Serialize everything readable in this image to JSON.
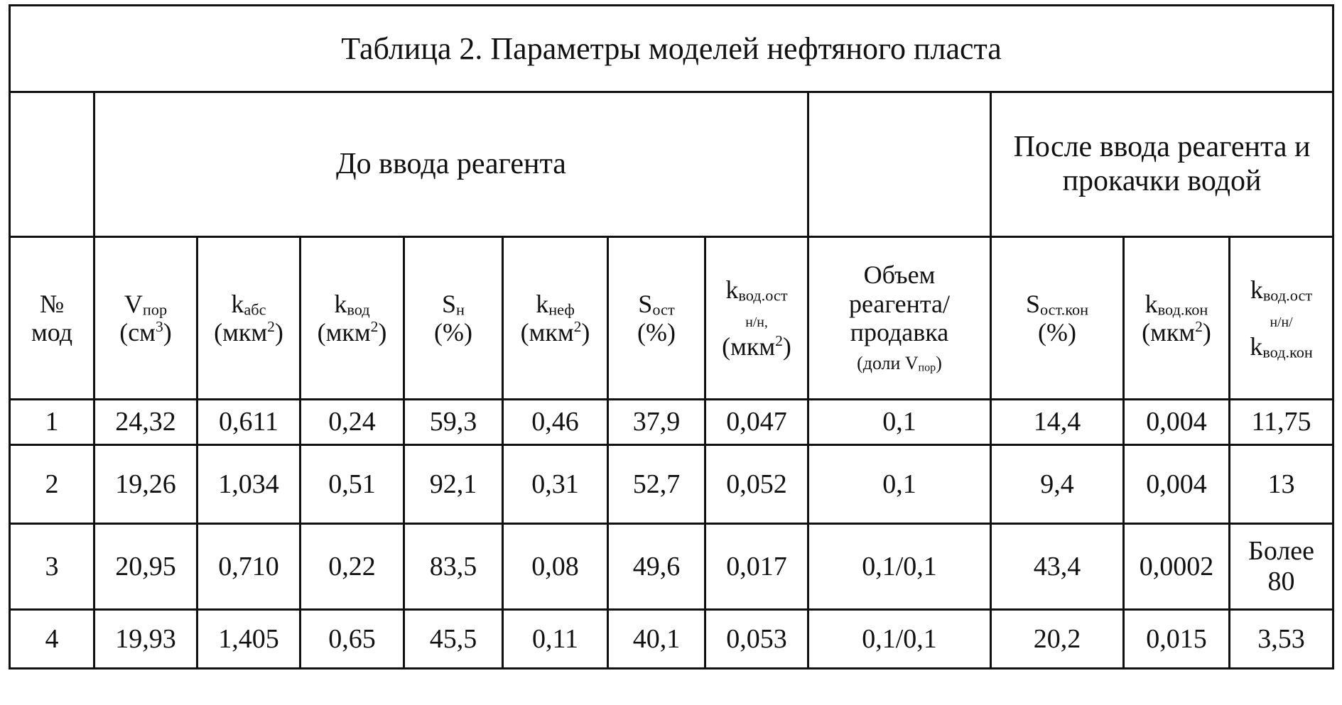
{
  "title": "Таблица 2. Параметры моделей нефтяного пласта",
  "groups": {
    "before": "До ввода реагента",
    "after": "После ввода реагента и прокачки водой"
  },
  "headers": [
    {
      "main": "№",
      "line2": "мод"
    },
    {
      "main": "V",
      "sub": "пор",
      "line2": "(см",
      "sup": "3",
      "close": ")"
    },
    {
      "main": "k",
      "sub": "абс",
      "line2": "(мкм",
      "sup": "2",
      "close": ")"
    },
    {
      "main": "k",
      "sub": "вод",
      "line2": "(мкм",
      "sup": "2",
      "close": ")"
    },
    {
      "main": "S",
      "sub": "н",
      "line2": "(%)"
    },
    {
      "main": "k",
      "sub": "неф",
      "line2": "(мкм",
      "sup": "2",
      "close": ")"
    },
    {
      "main": "S",
      "sub": "ост",
      "line2": "(%)"
    },
    {
      "main": "k",
      "sub": "вод.ост",
      "mid": "н/н,",
      "line2": "(мкм",
      "sup": "2",
      "close": ")"
    },
    {
      "l1": "Объем",
      "l2": "реагента/",
      "l3": "продавка",
      "l4": "(доли V",
      "sub": "пор",
      "close": ")"
    },
    {
      "main": "S",
      "sub": "ост.кон",
      "line2": "(%)"
    },
    {
      "main": "k",
      "sub": "вод.кон",
      "line2": "(мкм",
      "sup": "2",
      "close": ")"
    },
    {
      "main": "k",
      "sub": "вод.ост",
      "mid": "н/н/",
      "main2": "k",
      "sub2": "вод.кон"
    }
  ],
  "rows": [
    [
      "1",
      "24,32",
      "0,611",
      "0,24",
      "59,3",
      "0,46",
      "37,9",
      "0,047",
      "0,1",
      "14,4",
      "0,004",
      "11,75"
    ],
    [
      "2",
      "19,26",
      "1,034",
      "0,51",
      "92,1",
      "0,31",
      "52,7",
      "0,052",
      "0,1",
      "9,4",
      "0,004",
      "13"
    ],
    [
      "3",
      "20,95",
      "0,710",
      "0,22",
      "83,5",
      "0,08",
      "49,6",
      "0,017",
      "0,1/0,1",
      "43,4",
      "0,0002",
      "Более 80"
    ],
    [
      "4",
      "19,93",
      "1,405",
      "0,65",
      "45,5",
      "0,11",
      "40,1",
      "0,053",
      "0,1/0,1",
      "20,2",
      "0,015",
      "3,53"
    ]
  ]
}
